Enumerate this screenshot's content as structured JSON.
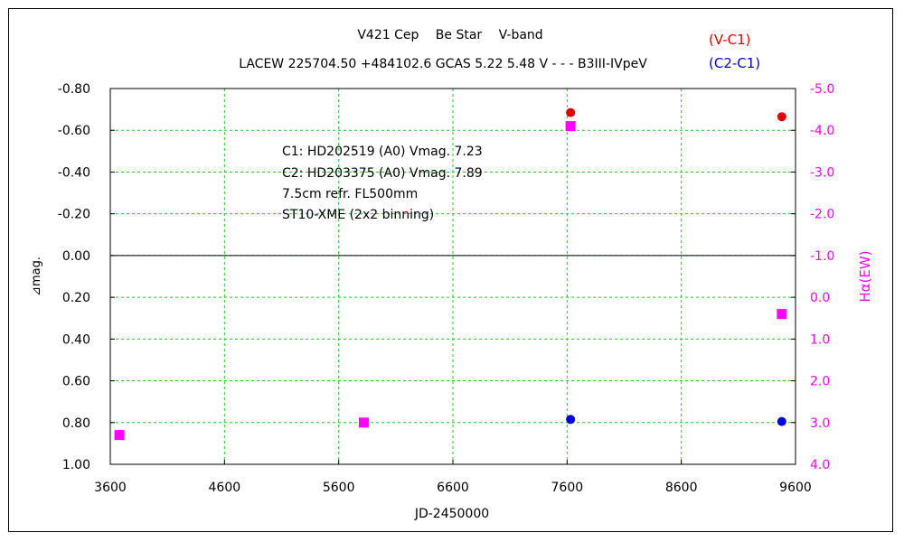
{
  "chart_data": {
    "type": "scatter",
    "title_line1": "V421 Cep　 Be Star　 V-band",
    "title_line2": "LACEW 225704.50 +484102.6 GCAS 5.22 5.48 V - - - B3III-IVpeV",
    "xlabel": "JD-2450000",
    "ylabel_left": "⊿mag.",
    "ylabel_right": "Hα(EW)",
    "xlim": [
      3600,
      9600
    ],
    "ylim_left": [
      -0.8,
      1.0
    ],
    "ylim_right": [
      -5.0,
      4.0
    ],
    "x_ticks": [
      "3600",
      "4600",
      "5600",
      "6600",
      "7600",
      "8600",
      "9600"
    ],
    "y_left_ticks": [
      "-0.80",
      "-0.60",
      "-0.40",
      "-0.20",
      "0.00",
      "0.20",
      "0.40",
      "0.60",
      "0.80",
      "1.00"
    ],
    "y_right_ticks": [
      "-5.0",
      "-4.0",
      "-3.0",
      "-2.0",
      "-1.0",
      "0.0",
      "1.0",
      "2.0",
      "3.0",
      "4.0"
    ],
    "grid": true,
    "legend": [
      {
        "label": "(V-C1)",
        "color": "#e00000"
      },
      {
        "label": "(C2-C1)",
        "color": "#0000dd"
      }
    ],
    "annotations": [
      "C1: HD202519 (A0) Vmag. 7.23",
      "C2: HD203375 (A0) Vmag. 7.89",
      "7.5cm refr. FL500mm",
      "ST10-XME (2x2 binning)"
    ],
    "series": [
      {
        "name": "(V-C1)",
        "axis": "left",
        "marker": "circle",
        "color": "#e00000",
        "points": [
          {
            "x": 7630,
            "y": -0.685
          },
          {
            "x": 9480,
            "y": -0.665
          }
        ]
      },
      {
        "name": "(C2-C1)",
        "axis": "left",
        "marker": "circle",
        "color": "#0000dd",
        "points": [
          {
            "x": 7630,
            "y": 0.785
          },
          {
            "x": 9480,
            "y": 0.795
          }
        ]
      },
      {
        "name": "Hα(EW)",
        "axis": "right",
        "marker": "square",
        "color": "#ff00ff",
        "points": [
          {
            "x": 3680,
            "y": 3.3
          },
          {
            "x": 5820,
            "y": 3.0
          },
          {
            "x": 7630,
            "y": -4.1
          },
          {
            "x": 9480,
            "y": 0.4
          }
        ]
      }
    ]
  }
}
